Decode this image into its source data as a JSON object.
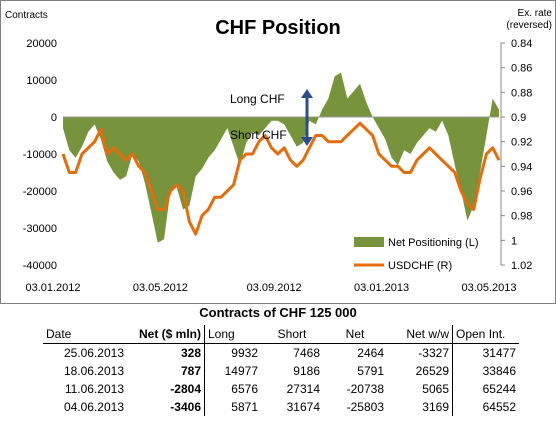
{
  "chart_data": {
    "type": "area+line",
    "title": "CHF Position",
    "ylabel_left": "Contracts",
    "ylabel_right": "Ex. rate\n(reversed)",
    "y_left_ticks": [
      "20000",
      "10000",
      "0",
      "-10000",
      "-20000",
      "-30000",
      "-40000"
    ],
    "y_left_range": [
      -40000,
      20000
    ],
    "y_right_ticks": [
      "0.84",
      "0.86",
      "0.88",
      "0.9",
      "0.92",
      "0.94",
      "0.96",
      "0.98",
      "1",
      "1.02"
    ],
    "y_right_range": [
      0.84,
      1.02
    ],
    "y_right_reversed": true,
    "x_tick_labels": [
      "03.01.2012",
      "03.05.2012",
      "03.09.2012",
      "03.01.2013",
      "03.05.2013"
    ],
    "x_tick_weeks": [
      0,
      17,
      35,
      52,
      69
    ],
    "annotations": {
      "long": "Long CHF",
      "short": "Short CHF"
    },
    "series": [
      {
        "name": "Net Positioning (L)",
        "kind": "area",
        "color": "#77933c",
        "values": [
          -3000,
          -9000,
          -11000,
          -8000,
          -4000,
          -2000,
          -6000,
          -12000,
          -15000,
          -17000,
          -16000,
          -10000,
          -12000,
          -18000,
          -26000,
          -34000,
          -33000,
          -20000,
          -19000,
          -25000,
          -24000,
          -16000,
          -14000,
          -11000,
          -9000,
          -6000,
          -3000,
          -8000,
          -13000,
          -7000,
          -4000,
          -5000,
          -3000,
          -1000,
          -1000,
          -2000,
          -5000,
          -8000,
          -7000,
          -1000,
          -2000,
          2000,
          5000,
          11000,
          12000,
          5000,
          7000,
          9000,
          4000,
          0,
          -3000,
          -6000,
          -11000,
          -13000,
          -9000,
          -10000,
          -7000,
          -5000,
          -3000,
          -4000,
          -1000,
          -5000,
          -13000,
          -20000,
          -28000,
          -24000,
          -15000,
          -5000,
          5000,
          2000
        ]
      },
      {
        "name": "USDCHF (R)",
        "kind": "line",
        "color": "#e46c0a",
        "values": [
          0.93,
          0.945,
          0.945,
          0.93,
          0.925,
          0.92,
          0.91,
          0.93,
          0.925,
          0.93,
          0.935,
          0.93,
          0.94,
          0.945,
          0.96,
          0.975,
          0.975,
          0.96,
          0.955,
          0.96,
          0.985,
          0.995,
          0.98,
          0.975,
          0.965,
          0.965,
          0.96,
          0.955,
          0.935,
          0.93,
          0.93,
          0.92,
          0.915,
          0.925,
          0.93,
          0.925,
          0.935,
          0.94,
          0.935,
          0.925,
          0.915,
          0.915,
          0.92,
          0.92,
          0.92,
          0.915,
          0.91,
          0.905,
          0.91,
          0.915,
          0.93,
          0.935,
          0.94,
          0.94,
          0.945,
          0.945,
          0.935,
          0.93,
          0.925,
          0.93,
          0.935,
          0.94,
          0.945,
          0.96,
          0.97,
          0.975,
          0.95,
          0.93,
          0.925,
          0.935
        ]
      }
    ]
  },
  "table": {
    "title": "Contracts of CHF 125 000",
    "headers": {
      "date": "Date",
      "net": "Net ($ mln)",
      "long": "Long",
      "short": "Short",
      "netc": "Net",
      "netww": "Net w/w",
      "oi": "Open Int."
    },
    "rows": [
      {
        "date": "25.06.2013",
        "net": "328",
        "long": "9932",
        "short": "7468",
        "netc": "2464",
        "netww": "-3327",
        "oi": "31477"
      },
      {
        "date": "18.06.2013",
        "net": "787",
        "long": "14977",
        "short": "9186",
        "netc": "5791",
        "netww": "26529",
        "oi": "33846"
      },
      {
        "date": "11.06.2013",
        "net": "-2804",
        "long": "6576",
        "short": "27314",
        "netc": "-20738",
        "netww": "5065",
        "oi": "65244"
      },
      {
        "date": "04.06.2013",
        "net": "-3406",
        "long": "5871",
        "short": "31674",
        "netc": "-25803",
        "netww": "3169",
        "oi": "64552"
      }
    ]
  }
}
